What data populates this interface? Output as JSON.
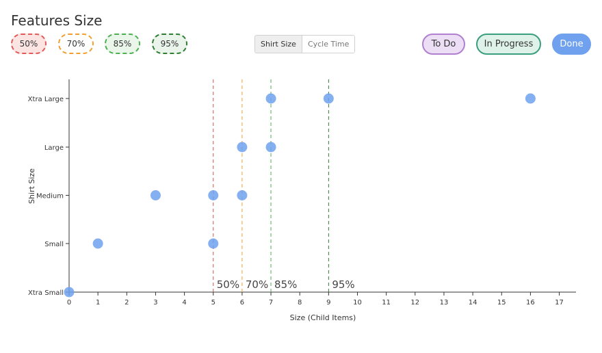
{
  "header": {
    "title": "Features Size"
  },
  "percentile_chips": [
    {
      "label": "50%",
      "border": "#e05a5a",
      "fill": "#fbe4e2"
    },
    {
      "label": "70%",
      "border": "#f0a030",
      "fill": "#ffffff"
    },
    {
      "label": "85%",
      "border": "#4caf50",
      "fill": "#eaf6ea"
    },
    {
      "label": "95%",
      "border": "#2e7d32",
      "fill": "#eaf4ea"
    }
  ],
  "view_toggle": {
    "options": [
      "Shirt Size",
      "Cycle Time"
    ],
    "selected": "Shirt Size"
  },
  "status_filters": [
    {
      "label": "To Do",
      "border": "#b07fd0",
      "fill": "#ecdff5"
    },
    {
      "label": "In Progress",
      "border": "#3a9e7e",
      "fill": "#dff2ea"
    },
    {
      "label": "Done",
      "border": "#6fa1ee",
      "fill": "#6fa1ee",
      "text": "#ffffff"
    }
  ],
  "chart_data": {
    "type": "scatter",
    "xlabel": "Size (Child Items)",
    "ylabel": "Shirt Size",
    "xlim": [
      0,
      17.6
    ],
    "x_ticks": [
      0,
      1,
      2,
      3,
      4,
      5,
      6,
      7,
      8,
      9,
      10,
      11,
      12,
      13,
      14,
      15,
      16,
      17
    ],
    "categories": [
      "Xtra Small",
      "Small",
      "Medium",
      "Large",
      "Xtra Large"
    ],
    "points": [
      {
        "x": 0,
        "y": "Xtra Small"
      },
      {
        "x": 1,
        "y": "Small"
      },
      {
        "x": 5,
        "y": "Small"
      },
      {
        "x": 3,
        "y": "Medium"
      },
      {
        "x": 5,
        "y": "Medium"
      },
      {
        "x": 6,
        "y": "Medium"
      },
      {
        "x": 6,
        "y": "Large"
      },
      {
        "x": 7,
        "y": "Large"
      },
      {
        "x": 7,
        "y": "Xtra Large"
      },
      {
        "x": 9,
        "y": "Xtra Large"
      },
      {
        "x": 16,
        "y": "Xtra Large"
      }
    ],
    "percentile_lines": [
      {
        "label": "50%",
        "x": 5,
        "color": "#d9534f"
      },
      {
        "label": "70%",
        "x": 6,
        "color": "#f0a030"
      },
      {
        "label": "85%",
        "x": 7,
        "color": "#4caf50"
      },
      {
        "label": "95%",
        "x": 9,
        "color": "#2e7d32"
      }
    ],
    "point_color": "#6fa1ee",
    "grid": false
  }
}
